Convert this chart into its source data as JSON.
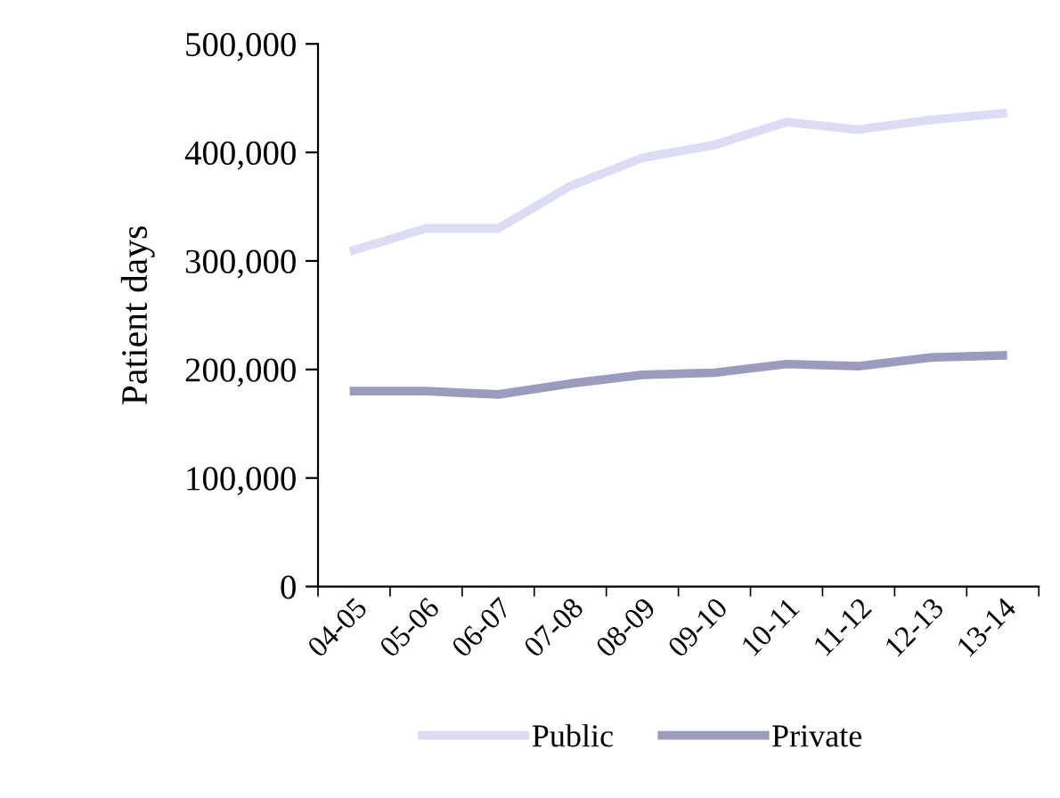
{
  "chart_data": {
    "type": "line",
    "ylabel": "Patient days",
    "categories": [
      "04-05",
      "05-06",
      "06-07",
      "07-08",
      "08-09",
      "09-10",
      "10-11",
      "11-12",
      "12-13",
      "13-14"
    ],
    "series": [
      {
        "name": "Public",
        "color": "#dcdcf5",
        "values": [
          310000,
          330000,
          330000,
          369000,
          395000,
          407000,
          428000,
          421000,
          430000,
          436000
        ]
      },
      {
        "name": "Private",
        "color": "#9b9bbd",
        "values": [
          180000,
          180000,
          177000,
          187000,
          195000,
          197000,
          205000,
          203000,
          211000,
          213000
        ]
      }
    ],
    "ylim": [
      0,
      500000
    ],
    "yticks": [
      {
        "value": 0,
        "label": "0"
      },
      {
        "value": 100000,
        "label": "100,000"
      },
      {
        "value": 200000,
        "label": "200,000"
      },
      {
        "value": 300000,
        "label": "300,000"
      },
      {
        "value": 400000,
        "label": "400,000"
      },
      {
        "value": 500000,
        "label": "500,000"
      }
    ],
    "grid": false,
    "legend": "bottom",
    "marker": "none",
    "line_style": "solid"
  }
}
